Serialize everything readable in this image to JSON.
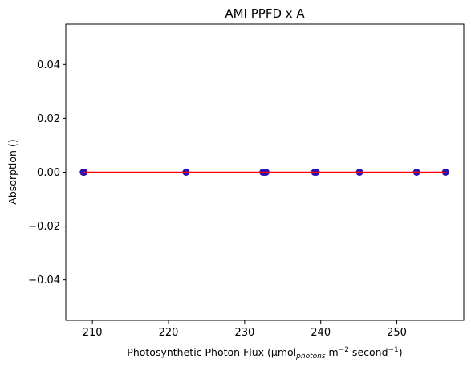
{
  "chart_data": {
    "type": "scatter",
    "title": "AMI PPFD x A",
    "xlabel": {
      "base": "Photosynthetic Photon Flux (µmol",
      "sub": "photons",
      "mid": " m",
      "sup1": "−2",
      "mid2": " second",
      "sup2": "−1",
      "end": ")"
    },
    "ylabel": "Absorption ()",
    "xlim": [
      206.5,
      258.8
    ],
    "ylim": [
      -0.055,
      0.055
    ],
    "xticks": [
      210,
      220,
      230,
      240,
      250
    ],
    "xtick_labels": [
      "210",
      "220",
      "230",
      "240",
      "250"
    ],
    "yticks": [
      -0.04,
      -0.02,
      0.0,
      0.02,
      0.04
    ],
    "ytick_labels": [
      "−0.04",
      "−0.02",
      "0.00",
      "0.02",
      "0.04"
    ],
    "grid": false,
    "series": [
      {
        "kind": "scatter",
        "color": "#2c0fb4",
        "x": [
          208.8,
          208.9,
          222.3,
          232.4,
          232.6,
          232.8,
          239.2,
          239.4,
          245.1,
          252.6,
          256.4
        ],
        "y": [
          0,
          0,
          0,
          0,
          0,
          0,
          0,
          0,
          0,
          0,
          0
        ]
      },
      {
        "kind": "line",
        "color": "#ff0000",
        "x": [
          208.8,
          256.4
        ],
        "y": [
          0,
          0
        ]
      }
    ]
  }
}
